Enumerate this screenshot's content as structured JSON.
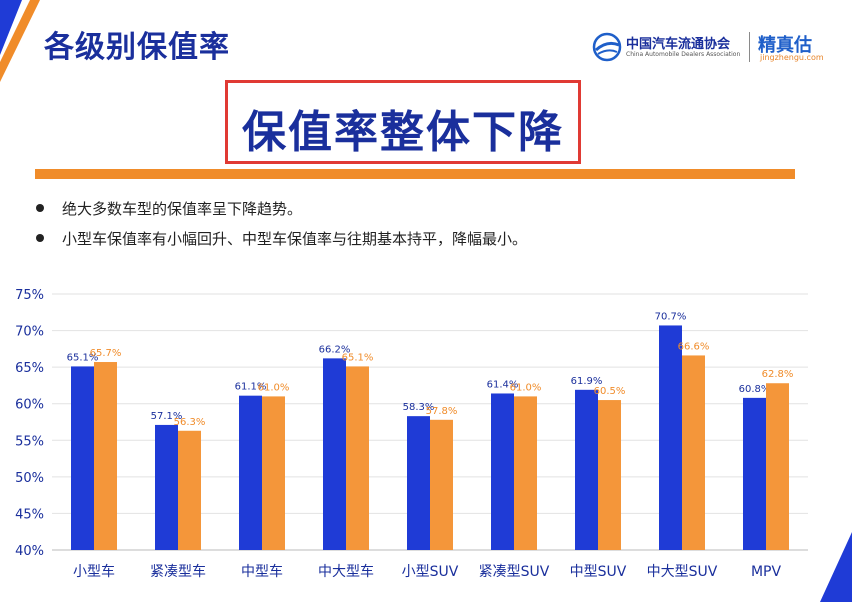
{
  "page_title": "各级别保值率",
  "headline": "保值率整体下降",
  "logos": {
    "cada_name": "中国汽车流通协会",
    "cada_english": "China Automobile Dealers Association",
    "jzg_name": "精真估",
    "jzg_url": "jingzhengu.com"
  },
  "bullets": [
    "绝大多数车型的保值率呈下降趋势。",
    "小型车保值率有小幅回升、中型车保值率与往期基本持平，降幅最小。"
  ],
  "colors": {
    "title": "#1a2f9c",
    "headline_border": "#e03a34",
    "accent_bar": "#f08c2a",
    "series_blue": "#1f3bd6",
    "series_orange": "#f4963a",
    "label_orange": "#f08c2a"
  },
  "chart_data": {
    "type": "bar",
    "categories": [
      "小型车",
      "紧凑型车",
      "中型车",
      "中大型车",
      "小型SUV",
      "紧凑型SUV",
      "中型SUV",
      "中大型SUV",
      "MPV"
    ],
    "series": [
      {
        "values": [
          65.1,
          57.1,
          61.1,
          66.2,
          58.3,
          61.4,
          61.9,
          70.7,
          60.8
        ],
        "labels": [
          "65.1%",
          "57.1%",
          "61.1%",
          "66.2%",
          "58.3%",
          "61.4%",
          "61.9%",
          "70.7%",
          "60.8%"
        ],
        "color": "#1f3bd6"
      },
      {
        "values": [
          65.7,
          56.3,
          61.0,
          65.1,
          57.8,
          61.0,
          60.5,
          66.6,
          62.8
        ],
        "labels": [
          "65.7%",
          "56.3%",
          "61.0%",
          "65.1%",
          "57.8%",
          "61.0%",
          "60.5%",
          "66.6%",
          "62.8%"
        ],
        "color": "#f4963a"
      }
    ],
    "ylim": [
      40,
      75
    ],
    "yticks": [
      40,
      45,
      50,
      55,
      60,
      65,
      70,
      75
    ],
    "ytick_labels": [
      "40%",
      "45%",
      "50%",
      "55%",
      "60%",
      "65%",
      "70%",
      "75%"
    ],
    "grid": true,
    "title": "",
    "xlabel": "",
    "ylabel": ""
  }
}
